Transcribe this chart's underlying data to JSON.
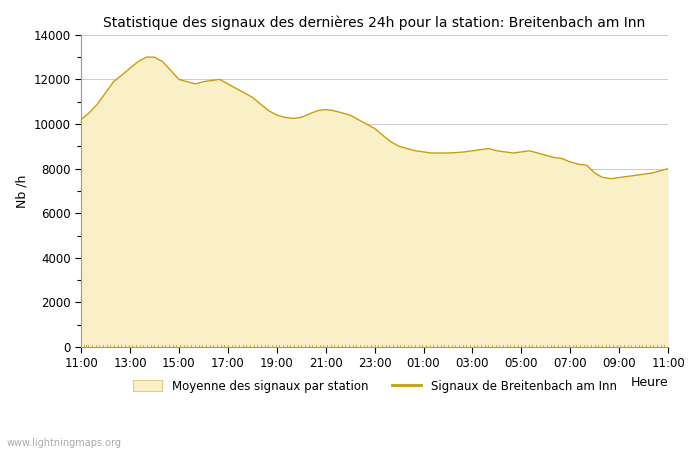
{
  "title": "Statistique des signaux des dernières 24h pour la station: Breitenbach am Inn",
  "xlabel": "Heure",
  "ylabel": "Nb /h",
  "xlim": [
    0,
    24
  ],
  "ylim": [
    0,
    14000
  ],
  "yticks": [
    0,
    2000,
    4000,
    6000,
    8000,
    10000,
    12000,
    14000
  ],
  "xtick_labels": [
    "11:00",
    "13:00",
    "15:00",
    "17:00",
    "19:00",
    "21:00",
    "23:00",
    "01:00",
    "03:00",
    "05:00",
    "07:00",
    "09:00",
    "11:00"
  ],
  "fill_color": "#FAF0C8",
  "fill_edge_color": "#FAF0C8",
  "line_color": "#C8A000",
  "tick_line_color": "#C8A000",
  "background_color": "#ffffff",
  "grid_color": "#cccccc",
  "title_fontsize": 10,
  "axis_fontsize": 9,
  "tick_fontsize": 8.5,
  "watermark": "www.lightningmaps.org",
  "legend_fill_label": "Moyenne des signaux par station",
  "legend_line_label": "Signaux de Breitenbach am Inn",
  "x_values": [
    0,
    0.33,
    0.67,
    1.0,
    1.33,
    1.67,
    2.0,
    2.33,
    2.67,
    3.0,
    3.33,
    3.67,
    4.0,
    4.33,
    4.67,
    5.0,
    5.33,
    5.67,
    6.0,
    6.33,
    6.67,
    7.0,
    7.33,
    7.67,
    8.0,
    8.33,
    8.67,
    9.0,
    9.33,
    9.67,
    10.0,
    10.33,
    10.67,
    11.0,
    11.33,
    11.67,
    12.0,
    12.33,
    12.67,
    13.0,
    13.33,
    13.67,
    14.0,
    14.33,
    14.67,
    15.0,
    15.33,
    15.67,
    16.0,
    16.33,
    16.67,
    17.0,
    17.33,
    17.67,
    18.0,
    18.33,
    18.67,
    19.0,
    19.33,
    19.67,
    20.0,
    20.33,
    20.67,
    21.0,
    21.33,
    21.67,
    22.0,
    22.33,
    22.67,
    23.0,
    23.33,
    23.67,
    24.0
  ],
  "y_fill": [
    10200,
    10500,
    10900,
    11400,
    11900,
    12200,
    12500,
    12800,
    13000,
    13000,
    12800,
    12400,
    12000,
    11900,
    11800,
    11900,
    11950,
    12000,
    11800,
    11600,
    11400,
    11200,
    10900,
    10600,
    10400,
    10300,
    10250,
    10300,
    10450,
    10600,
    10650,
    10600,
    10500,
    10400,
    10200,
    10000,
    9800,
    9500,
    9200,
    9000,
    8900,
    8800,
    8750,
    8700,
    8700,
    8700,
    8720,
    8750,
    8800,
    8850,
    8900,
    8800,
    8750,
    8700,
    8750,
    8800,
    8700,
    8600,
    8500,
    8450,
    8300,
    8200,
    8150,
    7800,
    7600,
    7550,
    7600,
    7650,
    7700,
    7750,
    7800,
    7900,
    8000
  ],
  "y_line": [
    10200,
    10500,
    10900,
    11400,
    11900,
    12200,
    12500,
    12800,
    13000,
    13000,
    12800,
    12400,
    12000,
    11900,
    11800,
    11900,
    11950,
    12000,
    11800,
    11600,
    11400,
    11200,
    10900,
    10600,
    10400,
    10300,
    10250,
    10300,
    10450,
    10600,
    10650,
    10600,
    10500,
    10400,
    10200,
    10000,
    9800,
    9500,
    9200,
    9000,
    8900,
    8800,
    8750,
    8700,
    8700,
    8700,
    8720,
    8750,
    8800,
    8850,
    8900,
    8800,
    8750,
    8700,
    8750,
    8800,
    8700,
    8600,
    8500,
    8450,
    8300,
    8200,
    8150,
    7800,
    7600,
    7550,
    7600,
    7650,
    7700,
    7750,
    7800,
    7900,
    8000
  ],
  "signal_ticks_x": [
    0.1,
    0.2,
    0.3,
    0.45,
    0.6,
    0.75,
    0.9,
    1.05,
    1.2,
    1.35,
    1.5,
    1.65,
    1.8,
    1.95,
    2.1,
    2.25,
    2.4,
    2.55,
    2.7,
    2.85,
    3.0,
    3.15,
    3.3,
    3.45,
    3.6,
    3.75,
    3.9,
    4.05,
    4.2,
    4.35,
    4.5,
    4.65,
    4.8,
    4.95,
    5.1,
    5.25,
    5.4,
    5.55,
    5.7,
    5.85,
    6.0,
    6.15,
    6.3,
    6.45,
    6.6,
    6.75,
    6.9,
    7.05,
    7.2,
    7.35,
    7.5,
    7.65,
    7.8,
    7.95,
    8.1,
    8.25,
    8.4,
    8.55,
    8.7,
    8.85,
    9.0,
    9.15,
    9.3,
    9.45,
    9.6,
    9.75,
    9.9,
    10.05,
    10.2,
    10.35,
    10.5,
    10.65,
    10.8,
    10.95,
    11.1,
    11.25,
    11.4,
    11.55,
    11.7,
    11.85,
    12.0,
    12.15,
    12.3,
    12.45,
    12.6,
    12.75,
    12.9,
    13.05,
    13.2,
    13.35,
    13.5,
    13.65,
    13.8,
    13.95,
    14.1,
    14.25,
    14.4,
    14.55,
    14.7,
    14.85,
    15.0,
    15.15,
    15.3,
    15.45,
    15.6,
    15.75,
    15.9,
    16.05,
    16.2,
    16.35,
    16.5,
    16.65,
    16.8,
    16.95,
    17.1,
    17.25,
    17.4,
    17.55,
    17.7,
    17.85,
    18.0,
    18.15,
    18.3,
    18.45,
    18.6,
    18.75,
    18.9,
    19.05,
    19.2,
    19.35,
    19.5,
    19.65,
    19.8,
    19.95,
    20.1,
    20.25,
    20.4,
    20.55,
    20.7,
    20.85,
    21.0,
    21.15,
    21.3,
    21.45,
    21.6,
    21.75,
    21.9,
    22.05,
    22.2,
    22.35,
    22.5,
    22.65,
    22.8,
    22.95,
    23.1,
    23.25,
    23.4,
    23.55,
    23.7,
    23.85
  ]
}
